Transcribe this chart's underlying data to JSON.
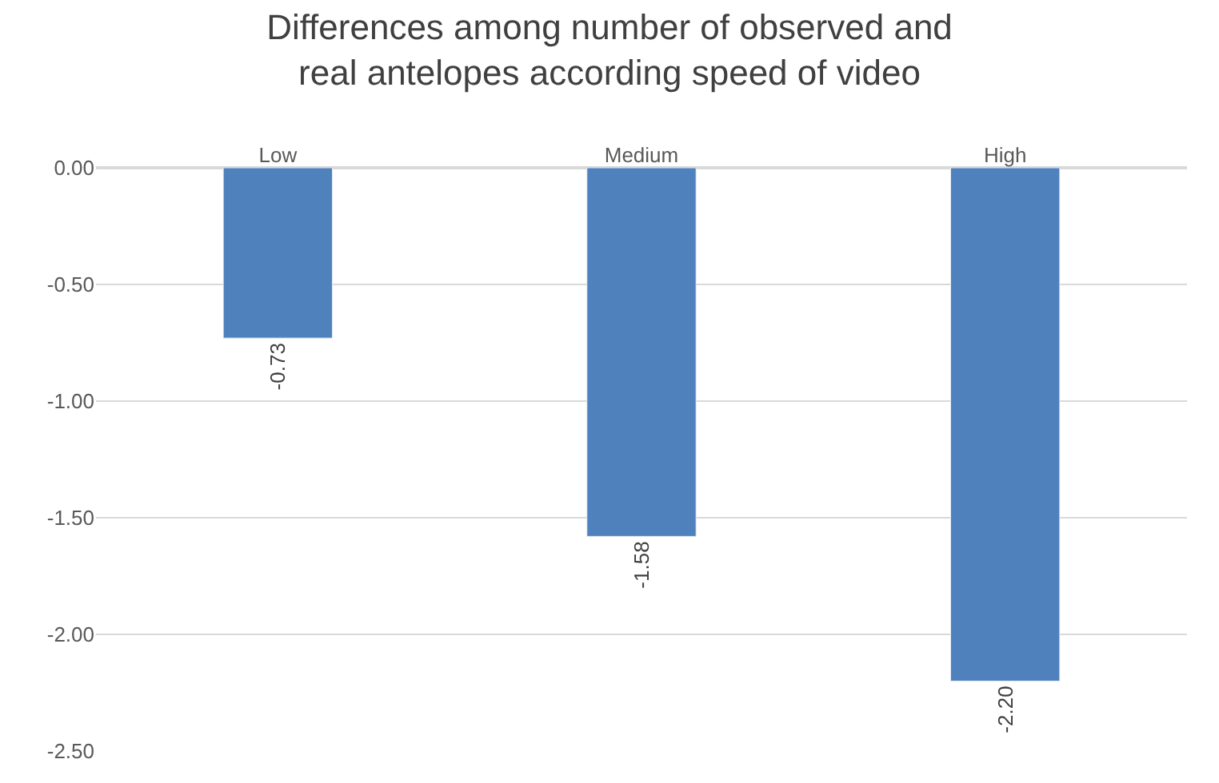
{
  "chart_data": {
    "type": "bar",
    "title": "Differences among number of observed and\nreal antelopes according speed of video",
    "categories": [
      "Low",
      "Medium",
      "High"
    ],
    "values": [
      -0.73,
      -1.58,
      -2.2
    ],
    "value_labels": [
      "-0.73",
      "-1.58",
      "-2.20"
    ],
    "color": "#4f81bd",
    "ylim": [
      -2.5,
      0
    ],
    "yticks": [
      {
        "value": 0,
        "label": "0.00"
      },
      {
        "value": -0.5,
        "label": "-0.50"
      },
      {
        "value": -1,
        "label": "-1.00"
      },
      {
        "value": -1.5,
        "label": "-1.50"
      },
      {
        "value": -2,
        "label": "-2.00"
      },
      {
        "value": -2.5,
        "label": "-2.50"
      }
    ],
    "grid": "y"
  }
}
